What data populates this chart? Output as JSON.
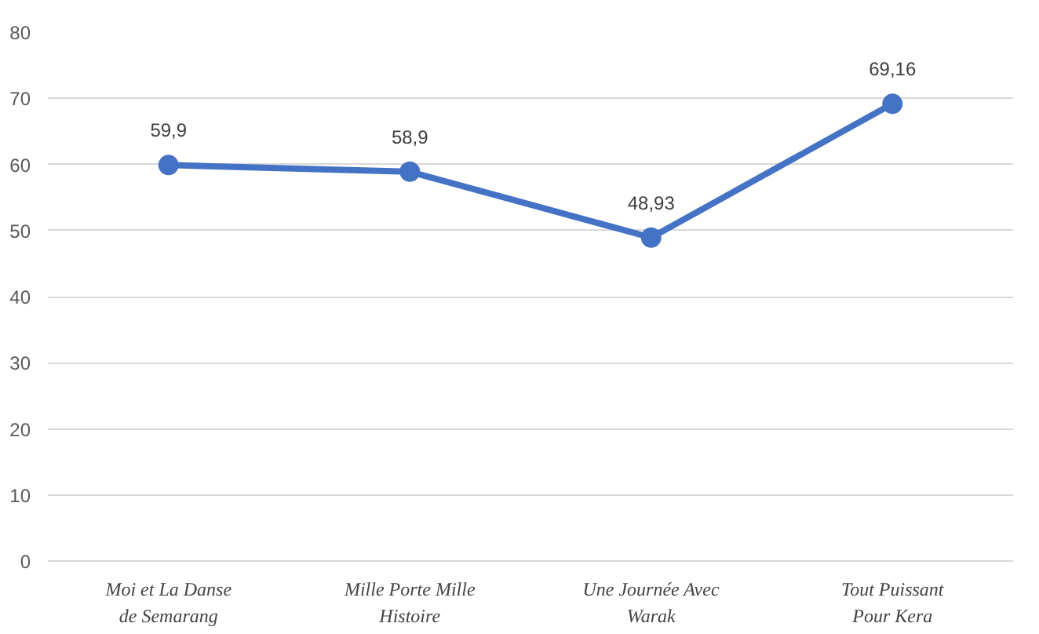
{
  "chart_data": {
    "type": "line",
    "categories": [
      "Moi et La Danse de Semarang",
      "Mille Porte Mille Histoire",
      "Une Journée Avec Warak",
      "Tout Puissant Pour Kera"
    ],
    "series": [
      {
        "color": "#4472c4",
        "values": [
          59.9,
          58.9,
          48.93,
          69.16
        ],
        "value_labels": [
          "59,9",
          "58,9",
          "48,93",
          "69,16"
        ]
      }
    ],
    "ylim": [
      0,
      80
    ],
    "yticks": [
      0,
      10,
      20,
      30,
      40,
      50,
      60,
      70,
      80
    ],
    "grid": "y",
    "marker": "circle",
    "line_style": "solid"
  }
}
